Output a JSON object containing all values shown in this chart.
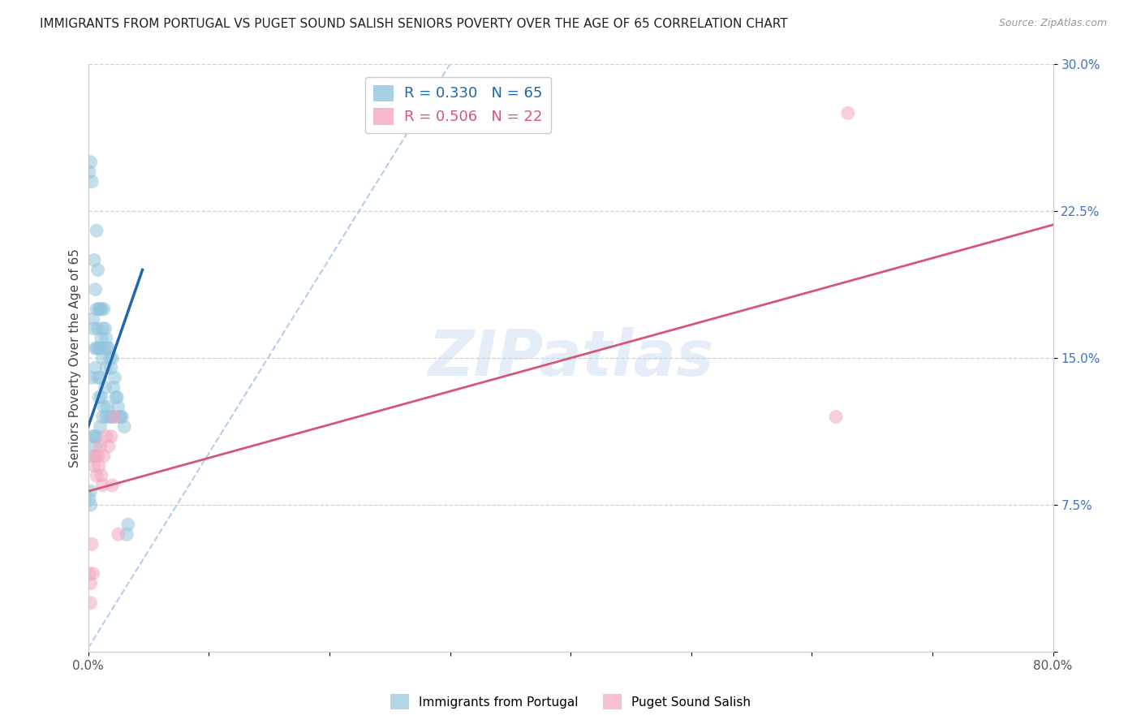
{
  "title": "IMMIGRANTS FROM PORTUGAL VS PUGET SOUND SALISH SENIORS POVERTY OVER THE AGE OF 65 CORRELATION CHART",
  "source": "Source: ZipAtlas.com",
  "ylabel": "Seniors Poverty Over the Age of 65",
  "xlim": [
    0.0,
    0.8
  ],
  "ylim": [
    0.0,
    0.3
  ],
  "xticks": [
    0.0,
    0.1,
    0.2,
    0.3,
    0.4,
    0.5,
    0.6,
    0.7,
    0.8
  ],
  "xticklabels": [
    "0.0%",
    "",
    "",
    "",
    "",
    "",
    "",
    "",
    "80.0%"
  ],
  "yticks": [
    0.0,
    0.075,
    0.15,
    0.225,
    0.3
  ],
  "yticklabels": [
    "",
    "7.5%",
    "15.0%",
    "22.5%",
    "30.0%"
  ],
  "legend_R1": "R = 0.330",
  "legend_N1": "N = 65",
  "legend_R2": "R = 0.506",
  "legend_N2": "N = 22",
  "blue_color": "#92c5de",
  "pink_color": "#f4a6c0",
  "blue_line_color": "#2166ac",
  "pink_line_color": "#d6567a",
  "dashed_line_color": "#aec8e8",
  "watermark": "ZIPatlas",
  "blue_x": [
    0.001,
    0.002,
    0.002,
    0.003,
    0.003,
    0.004,
    0.004,
    0.005,
    0.005,
    0.005,
    0.006,
    0.006,
    0.006,
    0.006,
    0.007,
    0.007,
    0.007,
    0.007,
    0.008,
    0.008,
    0.008,
    0.009,
    0.009,
    0.009,
    0.01,
    0.01,
    0.01,
    0.01,
    0.011,
    0.011,
    0.011,
    0.012,
    0.012,
    0.012,
    0.013,
    0.013,
    0.013,
    0.014,
    0.014,
    0.015,
    0.015,
    0.015,
    0.016,
    0.016,
    0.017,
    0.017,
    0.018,
    0.019,
    0.019,
    0.02,
    0.02,
    0.021,
    0.022,
    0.023,
    0.024,
    0.025,
    0.026,
    0.027,
    0.028,
    0.03,
    0.033,
    0.001,
    0.002,
    0.003,
    0.032
  ],
  "blue_y": [
    0.078,
    0.082,
    0.075,
    0.14,
    0.1,
    0.17,
    0.11,
    0.2,
    0.165,
    0.11,
    0.185,
    0.155,
    0.145,
    0.105,
    0.215,
    0.175,
    0.155,
    0.11,
    0.195,
    0.165,
    0.14,
    0.175,
    0.155,
    0.13,
    0.175,
    0.155,
    0.14,
    0.115,
    0.175,
    0.16,
    0.13,
    0.165,
    0.15,
    0.12,
    0.175,
    0.155,
    0.125,
    0.165,
    0.135,
    0.16,
    0.145,
    0.12,
    0.155,
    0.125,
    0.155,
    0.12,
    0.15,
    0.145,
    0.12,
    0.15,
    0.12,
    0.135,
    0.14,
    0.13,
    0.13,
    0.125,
    0.12,
    0.12,
    0.12,
    0.115,
    0.065,
    0.245,
    0.25,
    0.24,
    0.06
  ],
  "pink_x": [
    0.001,
    0.002,
    0.002,
    0.003,
    0.004,
    0.005,
    0.006,
    0.007,
    0.008,
    0.009,
    0.01,
    0.011,
    0.012,
    0.013,
    0.015,
    0.017,
    0.019,
    0.02,
    0.022,
    0.025,
    0.63,
    0.62
  ],
  "pink_y": [
    0.04,
    0.025,
    0.035,
    0.055,
    0.04,
    0.095,
    0.1,
    0.09,
    0.1,
    0.095,
    0.105,
    0.09,
    0.085,
    0.1,
    0.11,
    0.105,
    0.11,
    0.085,
    0.12,
    0.06,
    0.275,
    0.12
  ],
  "blue_line_x": [
    0.0,
    0.045
  ],
  "blue_line_y": [
    0.115,
    0.195
  ],
  "pink_line_x": [
    0.0,
    0.8
  ],
  "pink_line_y": [
    0.082,
    0.218
  ],
  "dash_line_x": [
    0.0,
    0.3
  ],
  "dash_line_y": [
    0.002,
    0.3
  ]
}
